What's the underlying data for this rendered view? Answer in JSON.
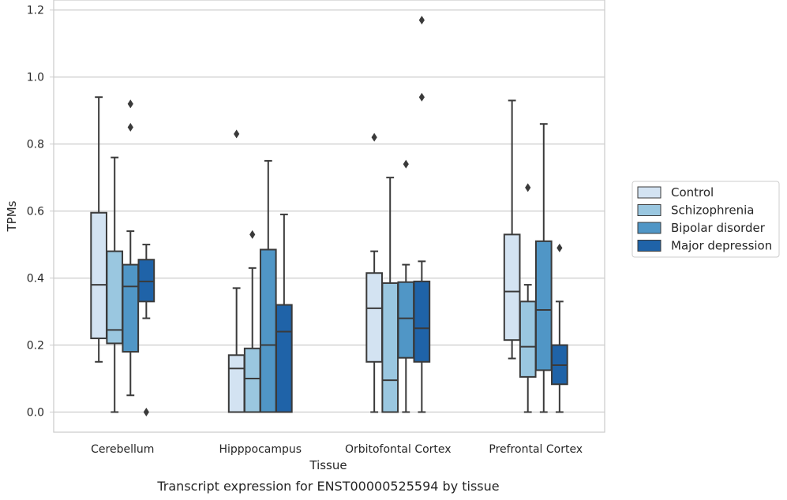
{
  "chart_data": {
    "type": "box",
    "title": "",
    "caption": "Transcript expression for ENST00000525594 by tissue",
    "xlabel": "Tissue",
    "ylabel": "TPMs",
    "ylim": [
      -0.06,
      1.23
    ],
    "yticks": [
      "0.0",
      "0.2",
      "0.4",
      "0.6",
      "0.8",
      "1.0",
      "1.2"
    ],
    "grid": "horizontal",
    "legend_position": "right",
    "categories": [
      "Cerebellum",
      "Hipppocampus",
      "Orbitofontal Cortex",
      "Prefrontal Cortex"
    ],
    "series": [
      {
        "name": "Control",
        "color": "#d3e3f2",
        "boxes": [
          {
            "min": 0.15,
            "q1": 0.22,
            "median": 0.38,
            "q3": 0.595,
            "max": 0.94,
            "outliers": []
          },
          {
            "min": 0.0,
            "q1": 0.0,
            "median": 0.13,
            "q3": 0.17,
            "max": 0.37,
            "outliers": [
              0.83
            ]
          },
          {
            "min": 0.0,
            "q1": 0.15,
            "median": 0.31,
            "q3": 0.415,
            "max": 0.48,
            "outliers": [
              0.82
            ]
          },
          {
            "min": 0.16,
            "q1": 0.215,
            "median": 0.36,
            "q3": 0.53,
            "max": 0.93,
            "outliers": []
          }
        ]
      },
      {
        "name": "Schizophrenia",
        "color": "#9ac7e0",
        "boxes": [
          {
            "min": 0.0,
            "q1": 0.205,
            "median": 0.245,
            "q3": 0.48,
            "max": 0.76,
            "outliers": []
          },
          {
            "min": 0.0,
            "q1": 0.0,
            "median": 0.1,
            "q3": 0.19,
            "max": 0.43,
            "outliers": [
              0.53
            ]
          },
          {
            "min": 0.0,
            "q1": 0.0,
            "median": 0.095,
            "q3": 0.385,
            "max": 0.7,
            "outliers": []
          },
          {
            "min": 0.0,
            "q1": 0.105,
            "median": 0.195,
            "q3": 0.33,
            "max": 0.38,
            "outliers": [
              0.67
            ]
          }
        ]
      },
      {
        "name": "Bipolar disorder",
        "color": "#5096c6",
        "boxes": [
          {
            "min": 0.05,
            "q1": 0.18,
            "median": 0.375,
            "q3": 0.44,
            "max": 0.54,
            "outliers": [
              0.85,
              0.92
            ]
          },
          {
            "min": 0.0,
            "q1": 0.0,
            "median": 0.2,
            "q3": 0.485,
            "max": 0.75,
            "outliers": []
          },
          {
            "min": 0.0,
            "q1": 0.162,
            "median": 0.28,
            "q3": 0.388,
            "max": 0.44,
            "outliers": [
              0.74
            ]
          },
          {
            "min": 0.0,
            "q1": 0.125,
            "median": 0.305,
            "q3": 0.51,
            "max": 0.86,
            "outliers": []
          }
        ]
      },
      {
        "name": "Major depression",
        "color": "#1f63a8",
        "boxes": [
          {
            "min": 0.28,
            "q1": 0.33,
            "median": 0.39,
            "q3": 0.455,
            "max": 0.5,
            "outliers": [
              0.0
            ]
          },
          {
            "min": 0.0,
            "q1": 0.0,
            "median": 0.24,
            "q3": 0.32,
            "max": 0.59,
            "outliers": []
          },
          {
            "min": 0.0,
            "q1": 0.15,
            "median": 0.25,
            "q3": 0.39,
            "max": 0.45,
            "outliers": [
              0.94,
              1.17
            ]
          },
          {
            "min": 0.0,
            "q1": 0.083,
            "median": 0.14,
            "q3": 0.2,
            "max": 0.33,
            "outliers": [
              0.49
            ]
          }
        ]
      }
    ]
  }
}
